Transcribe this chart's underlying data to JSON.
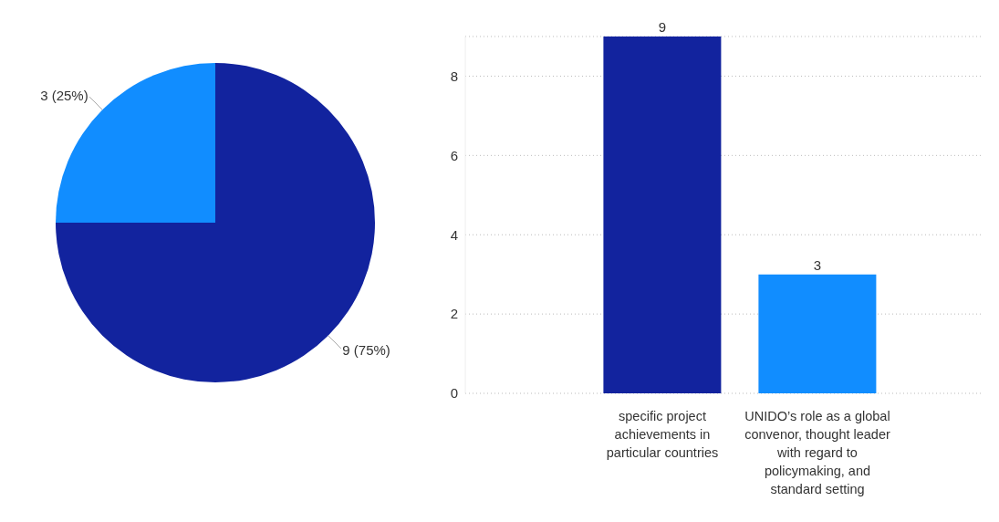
{
  "chart_data": [
    {
      "type": "pie",
      "categories": [
        null,
        null
      ],
      "values": [
        9,
        3
      ],
      "colors": [
        "#12239e",
        "#118dff"
      ],
      "value_labels": [
        "9 (75%)",
        "3 (25%)"
      ]
    },
    {
      "type": "bar",
      "categories": [
        "specific project achievements in particular countries",
        "UNIDO’s role as a global convenor, thought leader with regard to policymaking, and standard setting"
      ],
      "values": [
        9,
        3
      ],
      "colors": [
        "#12239e",
        "#118dff"
      ],
      "ylim": [
        0,
        9
      ],
      "yticks": [
        0,
        2,
        4,
        6,
        8
      ],
      "grid": "y",
      "data_labels": true
    }
  ]
}
